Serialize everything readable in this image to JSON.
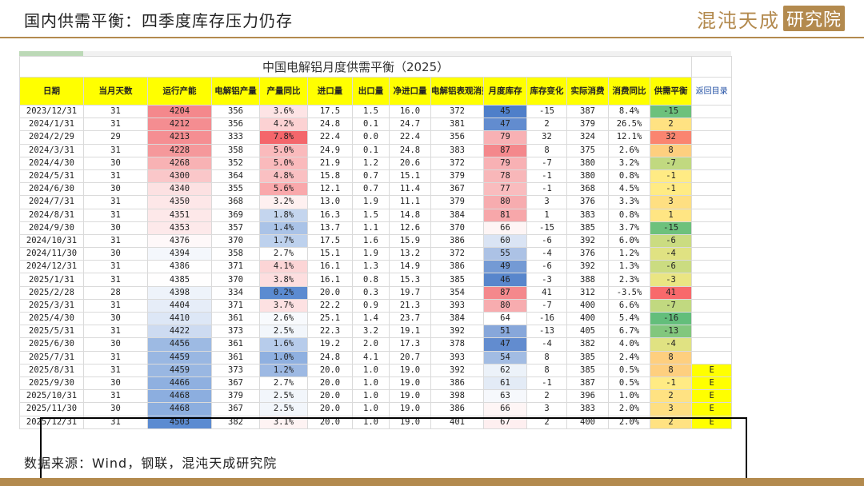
{
  "page": {
    "title": "国内供需平衡：四季度库存压力仍存",
    "brand_a": "混沌天成",
    "brand_b": "研究院",
    "source": "数据来源：Wind，钢联，混沌天成研究院"
  },
  "table": {
    "title": "中国电解铝月度供需平衡（2025）",
    "back_link": "返回目录",
    "headers": [
      "日期",
      "当月天数",
      "运行产能",
      "电解铝产量",
      "产量同比",
      "进口量",
      "出口量",
      "净进口量",
      "电解铝表观消费",
      "月度库存",
      "库存变化",
      "实际消费",
      "消费同比",
      "供需平衡"
    ],
    "rows": [
      [
        "2023/12/31",
        "31",
        "4204",
        "356",
        "3.6%",
        "17.5",
        "1.5",
        "16.0",
        "372",
        "45",
        "-15",
        "387",
        "8.4%",
        "-15",
        ""
      ],
      [
        "2024/1/31",
        "31",
        "4212",
        "356",
        "4.2%",
        "24.8",
        "0.1",
        "24.7",
        "381",
        "47",
        "2",
        "379",
        "26.5%",
        "2",
        ""
      ],
      [
        "2024/2/29",
        "29",
        "4213",
        "333",
        "7.8%",
        "22.4",
        "0.0",
        "22.4",
        "356",
        "79",
        "32",
        "324",
        "12.1%",
        "32",
        ""
      ],
      [
        "2024/3/31",
        "31",
        "4228",
        "358",
        "5.0%",
        "24.9",
        "0.1",
        "24.8",
        "383",
        "87",
        "8",
        "375",
        "2.6%",
        "8",
        ""
      ],
      [
        "2024/4/30",
        "30",
        "4268",
        "352",
        "5.0%",
        "21.9",
        "1.2",
        "20.6",
        "372",
        "79",
        "-7",
        "380",
        "3.2%",
        "-7",
        ""
      ],
      [
        "2024/5/31",
        "31",
        "4300",
        "364",
        "4.8%",
        "15.8",
        "0.7",
        "15.1",
        "379",
        "78",
        "-1",
        "380",
        "0.8%",
        "-1",
        ""
      ],
      [
        "2024/6/30",
        "30",
        "4340",
        "355",
        "5.6%",
        "12.1",
        "0.7",
        "11.4",
        "367",
        "77",
        "-1",
        "368",
        "4.5%",
        "-1",
        ""
      ],
      [
        "2024/7/31",
        "31",
        "4350",
        "368",
        "3.2%",
        "13.0",
        "1.9",
        "11.1",
        "379",
        "80",
        "3",
        "376",
        "3.3%",
        "3",
        ""
      ],
      [
        "2024/8/31",
        "31",
        "4351",
        "369",
        "1.8%",
        "16.3",
        "1.5",
        "14.8",
        "384",
        "81",
        "1",
        "383",
        "0.8%",
        "1",
        ""
      ],
      [
        "2024/9/30",
        "30",
        "4353",
        "357",
        "1.4%",
        "13.7",
        "1.1",
        "12.6",
        "370",
        "66",
        "-15",
        "385",
        "3.7%",
        "-15",
        ""
      ],
      [
        "2024/10/31",
        "31",
        "4376",
        "370",
        "1.7%",
        "17.5",
        "1.6",
        "15.9",
        "386",
        "60",
        "-6",
        "392",
        "6.0%",
        "-6",
        ""
      ],
      [
        "2024/11/30",
        "30",
        "4394",
        "358",
        "2.7%",
        "15.1",
        "1.9",
        "13.2",
        "372",
        "55",
        "-4",
        "376",
        "1.2%",
        "-4",
        ""
      ],
      [
        "2024/12/31",
        "31",
        "4386",
        "371",
        "4.1%",
        "16.1",
        "1.3",
        "14.9",
        "386",
        "49",
        "-6",
        "392",
        "1.3%",
        "-6",
        ""
      ],
      [
        "2025/1/31",
        "31",
        "4385",
        "370",
        "3.8%",
        "16.1",
        "0.8",
        "15.3",
        "385",
        "46",
        "-3",
        "388",
        "2.3%",
        "-3",
        ""
      ],
      [
        "2025/2/28",
        "28",
        "4398",
        "334",
        "0.2%",
        "20.0",
        "0.3",
        "19.7",
        "354",
        "87",
        "41",
        "312",
        "-3.5%",
        "41",
        ""
      ],
      [
        "2025/3/31",
        "31",
        "4404",
        "371",
        "3.7%",
        "22.2",
        "0.9",
        "21.3",
        "393",
        "80",
        "-7",
        "400",
        "6.6%",
        "-7",
        ""
      ],
      [
        "2025/4/30",
        "30",
        "4410",
        "361",
        "2.6%",
        "25.1",
        "1.4",
        "23.7",
        "384",
        "64",
        "-16",
        "400",
        "5.4%",
        "-16",
        ""
      ],
      [
        "2025/5/31",
        "31",
        "4422",
        "373",
        "2.5%",
        "22.3",
        "3.2",
        "19.1",
        "392",
        "51",
        "-13",
        "405",
        "6.7%",
        "-13",
        ""
      ],
      [
        "2025/6/30",
        "30",
        "4456",
        "361",
        "1.6%",
        "19.2",
        "2.0",
        "17.3",
        "378",
        "47",
        "-4",
        "382",
        "4.0%",
        "-4",
        ""
      ],
      [
        "2025/7/31",
        "31",
        "4459",
        "361",
        "1.0%",
        "24.8",
        "4.1",
        "20.7",
        "393",
        "54",
        "8",
        "385",
        "2.4%",
        "8",
        ""
      ],
      [
        "2025/8/31",
        "31",
        "4459",
        "373",
        "1.2%",
        "20.0",
        "1.0",
        "19.0",
        "392",
        "62",
        "8",
        "385",
        "0.5%",
        "8",
        "E"
      ],
      [
        "2025/9/30",
        "30",
        "4466",
        "367",
        "2.7%",
        "20.0",
        "1.0",
        "19.0",
        "386",
        "61",
        "-1",
        "387",
        "0.5%",
        "-1",
        "E"
      ],
      [
        "2025/10/31",
        "31",
        "4468",
        "379",
        "2.5%",
        "20.0",
        "1.0",
        "19.0",
        "398",
        "63",
        "2",
        "396",
        "1.0%",
        "2",
        "E"
      ],
      [
        "2025/11/30",
        "30",
        "4468",
        "367",
        "2.5%",
        "20.0",
        "1.0",
        "19.0",
        "386",
        "66",
        "3",
        "383",
        "2.0%",
        "3",
        "E"
      ],
      [
        "2025/12/31",
        "31",
        "4503",
        "382",
        "3.1%",
        "20.0",
        "1.0",
        "19.0",
        "401",
        "67",
        "2",
        "400",
        "2.0%",
        "2",
        "E"
      ]
    ]
  }
}
